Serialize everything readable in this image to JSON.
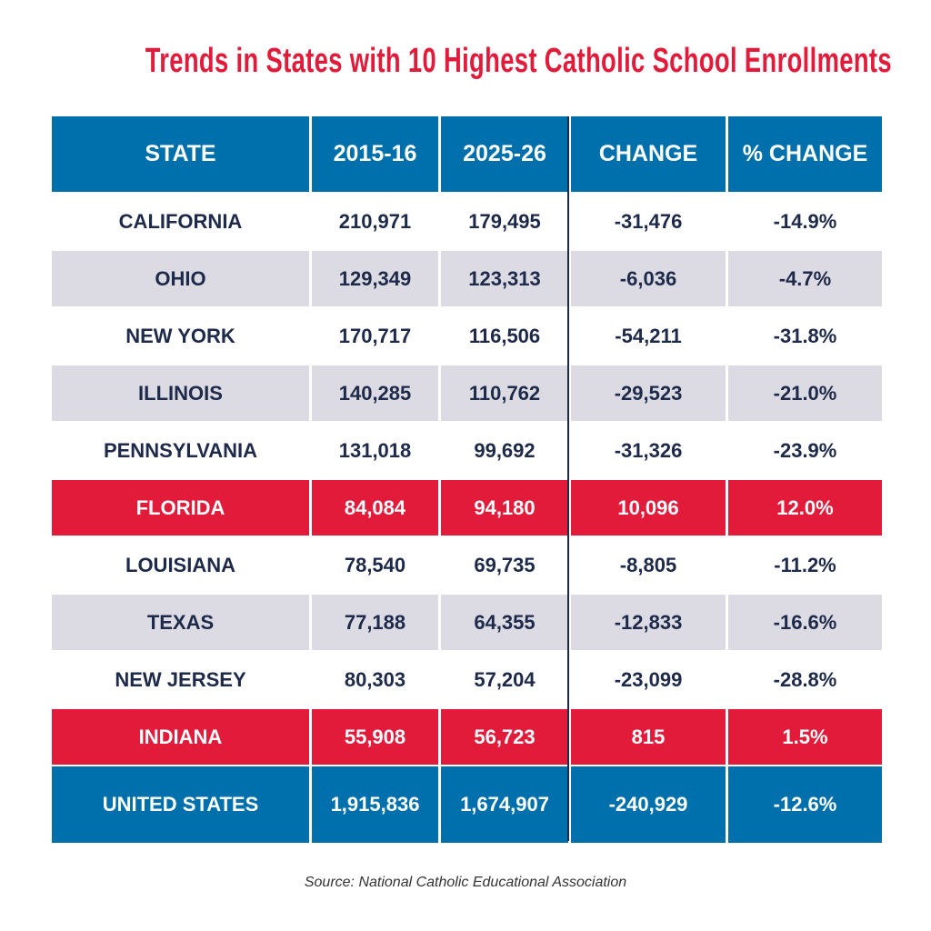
{
  "chart_data": {
    "type": "table",
    "title": "Trends in States with 10 Highest Catholic School Enrollments",
    "columns": [
      "STATE",
      "2015-16",
      "2025-26",
      "CHANGE",
      "% CHANGE"
    ],
    "rows": [
      {
        "state": "CALIFORNIA",
        "y2015": "210,971",
        "y2025": "179,495",
        "change": "-31,476",
        "pct": "-14.9%",
        "style": "white"
      },
      {
        "state": "OHIO",
        "y2015": "129,349",
        "y2025": "123,313",
        "change": "-6,036",
        "pct": "-4.7%",
        "style": "gray"
      },
      {
        "state": "NEW YORK",
        "y2015": "170,717",
        "y2025": "116,506",
        "change": "-54,211",
        "pct": "-31.8%",
        "style": "white"
      },
      {
        "state": "ILLINOIS",
        "y2015": "140,285",
        "y2025": "110,762",
        "change": "-29,523",
        "pct": "-21.0%",
        "style": "gray"
      },
      {
        "state": "PENNSYLVANIA",
        "y2015": "131,018",
        "y2025": "99,692",
        "change": "-31,326",
        "pct": "-23.9%",
        "style": "white"
      },
      {
        "state": "FLORIDA",
        "y2015": "84,084",
        "y2025": "94,180",
        "change": "10,096",
        "pct": "12.0%",
        "style": "red"
      },
      {
        "state": "LOUISIANA",
        "y2015": "78,540",
        "y2025": "69,735",
        "change": "-8,805",
        "pct": "-11.2%",
        "style": "white"
      },
      {
        "state": "TEXAS",
        "y2015": "77,188",
        "y2025": "64,355",
        "change": "-12,833",
        "pct": "-16.6%",
        "style": "gray"
      },
      {
        "state": "NEW JERSEY",
        "y2015": "80,303",
        "y2025": "57,204",
        "change": "-23,099",
        "pct": "-28.8%",
        "style": "white"
      },
      {
        "state": "INDIANA",
        "y2015": "55,908",
        "y2025": "56,723",
        "change": "815",
        "pct": "1.5%",
        "style": "red"
      },
      {
        "state": "UNITED STATES",
        "y2015": "1,915,836",
        "y2025": "1,674,907",
        "change": "-240,929",
        "pct": "-12.6%",
        "style": "total"
      }
    ],
    "colors": {
      "header": "#0070ad",
      "highlight": "#e31b3b",
      "stripe": "#dcdbe3",
      "text": "#1e2a4a"
    }
  },
  "source": "Source: National Catholic Educational Association"
}
